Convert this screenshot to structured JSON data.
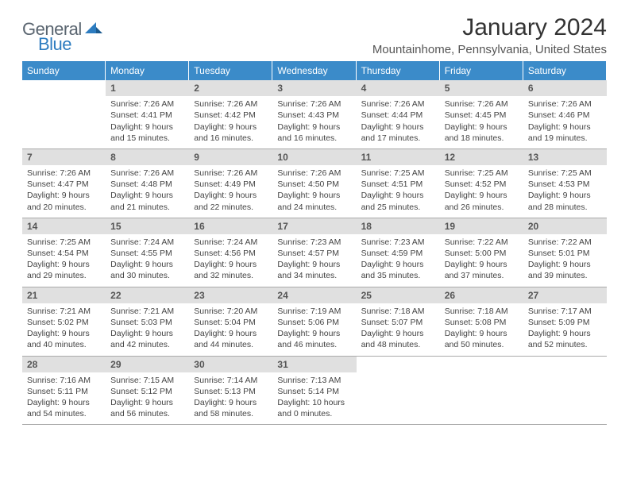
{
  "logo": {
    "general": "General",
    "blue": "Blue"
  },
  "title": "January 2024",
  "location": "Mountainhome, Pennsylvania, United States",
  "colors": {
    "header_bg": "#3b8bc9",
    "header_text": "#ffffff",
    "daynum_bg": "#e0e0e0",
    "border": "#aaaaaa"
  },
  "dayHeaders": [
    "Sunday",
    "Monday",
    "Tuesday",
    "Wednesday",
    "Thursday",
    "Friday",
    "Saturday"
  ],
  "weeks": [
    [
      {
        "empty": true
      },
      {
        "n": "1",
        "sr": "Sunrise: 7:26 AM",
        "ss": "Sunset: 4:41 PM",
        "dl1": "Daylight: 9 hours",
        "dl2": "and 15 minutes."
      },
      {
        "n": "2",
        "sr": "Sunrise: 7:26 AM",
        "ss": "Sunset: 4:42 PM",
        "dl1": "Daylight: 9 hours",
        "dl2": "and 16 minutes."
      },
      {
        "n": "3",
        "sr": "Sunrise: 7:26 AM",
        "ss": "Sunset: 4:43 PM",
        "dl1": "Daylight: 9 hours",
        "dl2": "and 16 minutes."
      },
      {
        "n": "4",
        "sr": "Sunrise: 7:26 AM",
        "ss": "Sunset: 4:44 PM",
        "dl1": "Daylight: 9 hours",
        "dl2": "and 17 minutes."
      },
      {
        "n": "5",
        "sr": "Sunrise: 7:26 AM",
        "ss": "Sunset: 4:45 PM",
        "dl1": "Daylight: 9 hours",
        "dl2": "and 18 minutes."
      },
      {
        "n": "6",
        "sr": "Sunrise: 7:26 AM",
        "ss": "Sunset: 4:46 PM",
        "dl1": "Daylight: 9 hours",
        "dl2": "and 19 minutes."
      }
    ],
    [
      {
        "n": "7",
        "sr": "Sunrise: 7:26 AM",
        "ss": "Sunset: 4:47 PM",
        "dl1": "Daylight: 9 hours",
        "dl2": "and 20 minutes."
      },
      {
        "n": "8",
        "sr": "Sunrise: 7:26 AM",
        "ss": "Sunset: 4:48 PM",
        "dl1": "Daylight: 9 hours",
        "dl2": "and 21 minutes."
      },
      {
        "n": "9",
        "sr": "Sunrise: 7:26 AM",
        "ss": "Sunset: 4:49 PM",
        "dl1": "Daylight: 9 hours",
        "dl2": "and 22 minutes."
      },
      {
        "n": "10",
        "sr": "Sunrise: 7:26 AM",
        "ss": "Sunset: 4:50 PM",
        "dl1": "Daylight: 9 hours",
        "dl2": "and 24 minutes."
      },
      {
        "n": "11",
        "sr": "Sunrise: 7:25 AM",
        "ss": "Sunset: 4:51 PM",
        "dl1": "Daylight: 9 hours",
        "dl2": "and 25 minutes."
      },
      {
        "n": "12",
        "sr": "Sunrise: 7:25 AM",
        "ss": "Sunset: 4:52 PM",
        "dl1": "Daylight: 9 hours",
        "dl2": "and 26 minutes."
      },
      {
        "n": "13",
        "sr": "Sunrise: 7:25 AM",
        "ss": "Sunset: 4:53 PM",
        "dl1": "Daylight: 9 hours",
        "dl2": "and 28 minutes."
      }
    ],
    [
      {
        "n": "14",
        "sr": "Sunrise: 7:25 AM",
        "ss": "Sunset: 4:54 PM",
        "dl1": "Daylight: 9 hours",
        "dl2": "and 29 minutes."
      },
      {
        "n": "15",
        "sr": "Sunrise: 7:24 AM",
        "ss": "Sunset: 4:55 PM",
        "dl1": "Daylight: 9 hours",
        "dl2": "and 30 minutes."
      },
      {
        "n": "16",
        "sr": "Sunrise: 7:24 AM",
        "ss": "Sunset: 4:56 PM",
        "dl1": "Daylight: 9 hours",
        "dl2": "and 32 minutes."
      },
      {
        "n": "17",
        "sr": "Sunrise: 7:23 AM",
        "ss": "Sunset: 4:57 PM",
        "dl1": "Daylight: 9 hours",
        "dl2": "and 34 minutes."
      },
      {
        "n": "18",
        "sr": "Sunrise: 7:23 AM",
        "ss": "Sunset: 4:59 PM",
        "dl1": "Daylight: 9 hours",
        "dl2": "and 35 minutes."
      },
      {
        "n": "19",
        "sr": "Sunrise: 7:22 AM",
        "ss": "Sunset: 5:00 PM",
        "dl1": "Daylight: 9 hours",
        "dl2": "and 37 minutes."
      },
      {
        "n": "20",
        "sr": "Sunrise: 7:22 AM",
        "ss": "Sunset: 5:01 PM",
        "dl1": "Daylight: 9 hours",
        "dl2": "and 39 minutes."
      }
    ],
    [
      {
        "n": "21",
        "sr": "Sunrise: 7:21 AM",
        "ss": "Sunset: 5:02 PM",
        "dl1": "Daylight: 9 hours",
        "dl2": "and 40 minutes."
      },
      {
        "n": "22",
        "sr": "Sunrise: 7:21 AM",
        "ss": "Sunset: 5:03 PM",
        "dl1": "Daylight: 9 hours",
        "dl2": "and 42 minutes."
      },
      {
        "n": "23",
        "sr": "Sunrise: 7:20 AM",
        "ss": "Sunset: 5:04 PM",
        "dl1": "Daylight: 9 hours",
        "dl2": "and 44 minutes."
      },
      {
        "n": "24",
        "sr": "Sunrise: 7:19 AM",
        "ss": "Sunset: 5:06 PM",
        "dl1": "Daylight: 9 hours",
        "dl2": "and 46 minutes."
      },
      {
        "n": "25",
        "sr": "Sunrise: 7:18 AM",
        "ss": "Sunset: 5:07 PM",
        "dl1": "Daylight: 9 hours",
        "dl2": "and 48 minutes."
      },
      {
        "n": "26",
        "sr": "Sunrise: 7:18 AM",
        "ss": "Sunset: 5:08 PM",
        "dl1": "Daylight: 9 hours",
        "dl2": "and 50 minutes."
      },
      {
        "n": "27",
        "sr": "Sunrise: 7:17 AM",
        "ss": "Sunset: 5:09 PM",
        "dl1": "Daylight: 9 hours",
        "dl2": "and 52 minutes."
      }
    ],
    [
      {
        "n": "28",
        "sr": "Sunrise: 7:16 AM",
        "ss": "Sunset: 5:11 PM",
        "dl1": "Daylight: 9 hours",
        "dl2": "and 54 minutes."
      },
      {
        "n": "29",
        "sr": "Sunrise: 7:15 AM",
        "ss": "Sunset: 5:12 PM",
        "dl1": "Daylight: 9 hours",
        "dl2": "and 56 minutes."
      },
      {
        "n": "30",
        "sr": "Sunrise: 7:14 AM",
        "ss": "Sunset: 5:13 PM",
        "dl1": "Daylight: 9 hours",
        "dl2": "and 58 minutes."
      },
      {
        "n": "31",
        "sr": "Sunrise: 7:13 AM",
        "ss": "Sunset: 5:14 PM",
        "dl1": "Daylight: 10 hours",
        "dl2": "and 0 minutes."
      },
      {
        "empty": true
      },
      {
        "empty": true
      },
      {
        "empty": true
      }
    ]
  ]
}
